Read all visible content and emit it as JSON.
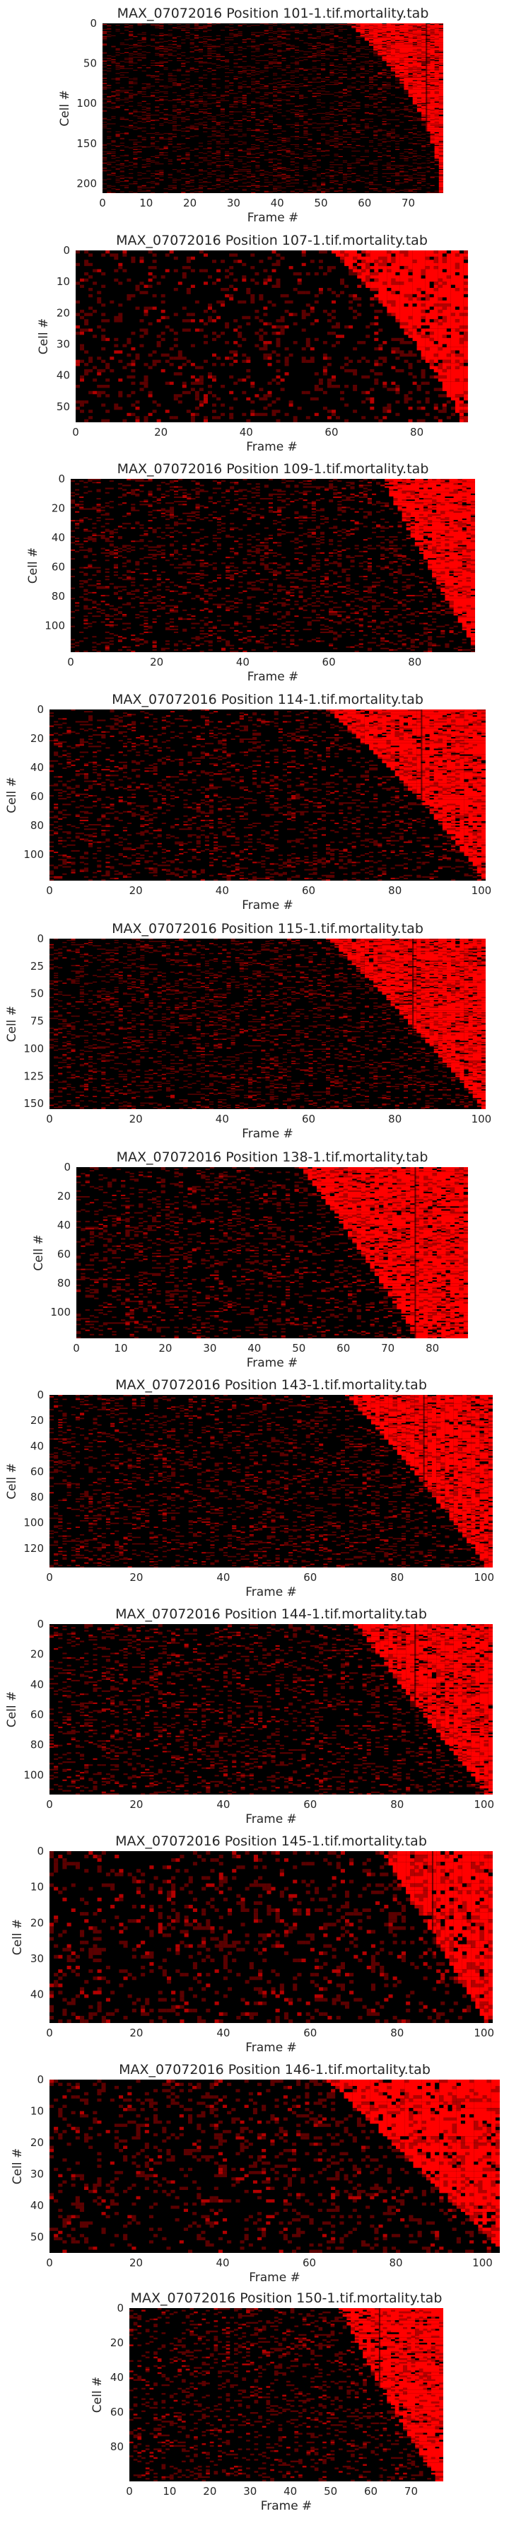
{
  "chart_data": [
    {
      "type": "heatmap",
      "title": "MAX_07072016 Position 101-1.tif.mortality.tab",
      "xlabel": "Frame #",
      "ylabel": "Cell #",
      "xlim": [
        0,
        78
      ],
      "ylim": [
        0,
        212
      ],
      "xticks": [
        0,
        10,
        20,
        30,
        40,
        50,
        60,
        70
      ],
      "yticks": [
        0,
        50,
        100,
        150,
        200
      ],
      "onset_start": [
        56,
        77
      ],
      "onset_end": [
        76,
        77
      ],
      "band": 74
    },
    {
      "type": "heatmap",
      "title": "MAX_07072016 Position 107-1.tif.mortality.tab",
      "xlabel": "Frame #",
      "ylabel": "Cell #",
      "xlim": [
        0,
        92
      ],
      "ylim": [
        0,
        55
      ],
      "xticks": [
        0,
        20,
        40,
        60,
        80
      ],
      "yticks": [
        0,
        10,
        20,
        30,
        40,
        50
      ],
      "onset_start": [
        60,
        72
      ],
      "onset_end": [
        88,
        90
      ],
      "band": null
    },
    {
      "type": "heatmap",
      "title": "MAX_07072016 Position 109-1.tif.mortality.tab",
      "xlabel": "Frame #",
      "ylabel": "Cell #",
      "xlim": [
        0,
        94
      ],
      "ylim": [
        0,
        118
      ],
      "xticks": [
        0,
        20,
        40,
        60,
        80
      ],
      "yticks": [
        0,
        20,
        40,
        60,
        80,
        100
      ],
      "onset_start": [
        72,
        72
      ],
      "onset_end": [
        92,
        94
      ],
      "band": null
    },
    {
      "type": "heatmap",
      "title": "MAX_07072016 Position 114-1.tif.mortality.tab",
      "xlabel": "Frame #",
      "ylabel": "Cell #",
      "xlim": [
        0,
        101
      ],
      "ylim": [
        0,
        118
      ],
      "xticks": [
        0,
        20,
        40,
        60,
        80,
        100
      ],
      "yticks": [
        0,
        20,
        40,
        60,
        80,
        100
      ],
      "onset_start": [
        64,
        86
      ],
      "onset_end": [
        86,
        100
      ],
      "band": 86
    },
    {
      "type": "heatmap",
      "title": "MAX_07072016 Position 115-1.tif.mortality.tab",
      "xlabel": "Frame #",
      "ylabel": "Cell #",
      "xlim": [
        0,
        101
      ],
      "ylim": [
        0,
        155
      ],
      "xticks": [
        0,
        20,
        40,
        60,
        80,
        100
      ],
      "yticks": [
        0,
        25,
        50,
        75,
        100,
        125,
        150
      ],
      "onset_start": [
        64,
        84
      ],
      "onset_end": [
        84,
        100
      ],
      "band": 84
    },
    {
      "type": "heatmap",
      "title": "MAX_07072016 Position 138-1.tif.mortality.tab",
      "xlabel": "Frame #",
      "ylabel": "Cell #",
      "xlim": [
        0,
        88
      ],
      "ylim": [
        0,
        118
      ],
      "xticks": [
        0,
        10,
        20,
        30,
        40,
        50,
        60,
        70,
        80
      ],
      "yticks": [
        0,
        20,
        40,
        60,
        80,
        100
      ],
      "onset_start": [
        50,
        64
      ],
      "onset_end": [
        64,
        76
      ],
      "band": 76
    },
    {
      "type": "heatmap",
      "title": "MAX_07072016 Position 143-1.tif.mortality.tab",
      "xlabel": "Frame #",
      "ylabel": "Cell #",
      "xlim": [
        0,
        102
      ],
      "ylim": [
        0,
        135
      ],
      "xticks": [
        0,
        20,
        40,
        60,
        80,
        100
      ],
      "yticks": [
        0,
        20,
        40,
        60,
        80,
        100,
        120
      ],
      "onset_start": [
        68,
        86
      ],
      "onset_end": [
        86,
        100
      ],
      "band": 86
    },
    {
      "type": "heatmap",
      "title": "MAX_07072016 Position 144-1.tif.mortality.tab",
      "xlabel": "Frame #",
      "ylabel": "Cell #",
      "xlim": [
        0,
        102
      ],
      "ylim": [
        0,
        113
      ],
      "xticks": [
        0,
        20,
        40,
        60,
        80,
        100
      ],
      "yticks": [
        0,
        20,
        40,
        60,
        80,
        100
      ],
      "onset_start": [
        70,
        84
      ],
      "onset_end": [
        84,
        100
      ],
      "band": 84
    },
    {
      "type": "heatmap",
      "title": "MAX_07072016 Position 145-1.tif.mortality.tab",
      "xlabel": "Frame #",
      "ylabel": "Cell #",
      "xlim": [
        0,
        102
      ],
      "ylim": [
        0,
        48
      ],
      "xticks": [
        0,
        20,
        40,
        60,
        80,
        100
      ],
      "yticks": [
        0,
        10,
        20,
        30,
        40
      ],
      "onset_start": [
        76,
        88
      ],
      "onset_end": [
        88,
        100
      ],
      "band": 88
    },
    {
      "type": "heatmap",
      "title": "MAX_07072016 Position 146-1.tif.mortality.tab",
      "xlabel": "Frame #",
      "ylabel": "Cell #",
      "xlim": [
        0,
        104
      ],
      "ylim": [
        0,
        55
      ],
      "xticks": [
        0,
        20,
        40,
        60,
        80,
        100
      ],
      "yticks": [
        0,
        10,
        20,
        30,
        40,
        50
      ],
      "onset_start": [
        64,
        72
      ],
      "onset_end": [
        96,
        104
      ],
      "band": null
    },
    {
      "type": "heatmap",
      "title": "MAX_07072016 Position 150-1.tif.mortality.tab",
      "xlabel": "Frame #",
      "ylabel": "Cell #",
      "xlim": [
        0,
        78
      ],
      "ylim": [
        0,
        100
      ],
      "xticks": [
        0,
        10,
        20,
        30,
        40,
        50,
        60,
        70
      ],
      "yticks": [
        0,
        20,
        40,
        60,
        80
      ],
      "onset_start": [
        52,
        62
      ],
      "onset_end": [
        62,
        76
      ],
      "band": 62
    }
  ],
  "colors": {
    "background": "#ffffff",
    "cell_off": "#000000",
    "cell_on": "#ff0000",
    "text": "#262626"
  }
}
